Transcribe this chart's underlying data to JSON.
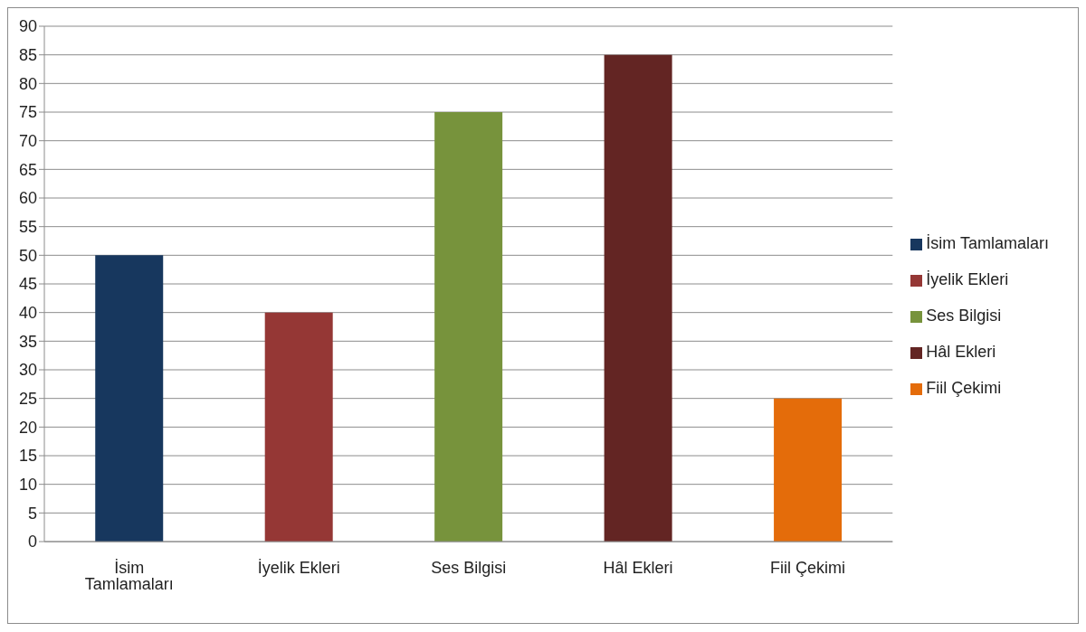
{
  "chart_data": {
    "type": "bar",
    "categories": [
      "İsim Tamlamaları",
      "İyelik Ekleri",
      "Ses Bilgisi",
      "Hâl Ekleri",
      "Fiil Çekimi"
    ],
    "series": [
      {
        "name": "İsim Tamlamaları",
        "color": "#17375e",
        "values": [
          50,
          null,
          null,
          null,
          null
        ]
      },
      {
        "name": "İyelik Ekleri",
        "color": "#953735",
        "values": [
          null,
          40,
          null,
          null,
          null
        ]
      },
      {
        "name": "Ses Bilgisi",
        "color": "#77933c",
        "values": [
          null,
          null,
          75,
          null,
          null
        ]
      },
      {
        "name": "Hâl Ekleri",
        "color": "#632523",
        "values": [
          null,
          null,
          null,
          85,
          null
        ]
      },
      {
        "name": "Fiil Çekimi",
        "color": "#e46c0a",
        "values": [
          null,
          null,
          null,
          null,
          25
        ]
      }
    ],
    "stacked": true,
    "ylim": [
      0,
      90
    ],
    "yticks": [
      0,
      5,
      10,
      15,
      20,
      25,
      30,
      35,
      40,
      45,
      50,
      55,
      60,
      65,
      70,
      75,
      80,
      85,
      90
    ],
    "grid": "y",
    "legend": "right"
  }
}
